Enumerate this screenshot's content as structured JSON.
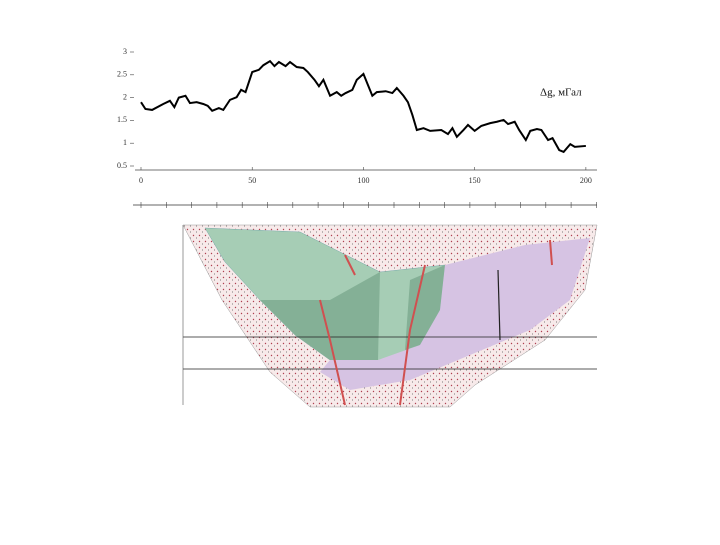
{
  "chart_data": {
    "type": "line",
    "annotation": "Δg, мГал",
    "x": [
      0,
      2,
      5,
      10,
      13,
      15,
      17,
      20,
      22,
      25,
      28,
      30,
      32,
      35,
      37,
      40,
      43,
      45,
      47,
      50,
      53,
      55,
      58,
      60,
      62,
      65,
      67,
      70,
      73,
      75,
      78,
      80,
      82,
      85,
      88,
      90,
      92,
      95,
      97,
      100,
      102,
      104,
      106,
      110,
      113,
      115,
      118,
      120,
      122,
      124,
      127,
      130,
      135,
      138,
      140,
      142,
      145,
      147,
      150,
      153,
      157,
      160,
      163,
      165,
      168,
      170,
      173,
      175,
      178,
      180,
      183,
      185,
      188,
      190,
      193,
      195,
      200
    ],
    "series": [
      {
        "color": "#000000",
        "values": [
          1.9,
          1.75,
          1.73,
          1.86,
          1.93,
          1.79,
          2.0,
          2.04,
          1.88,
          1.9,
          1.86,
          1.82,
          1.71,
          1.77,
          1.73,
          1.95,
          2.01,
          2.17,
          2.12,
          2.56,
          2.61,
          2.71,
          2.8,
          2.69,
          2.78,
          2.69,
          2.78,
          2.67,
          2.65,
          2.56,
          2.39,
          2.25,
          2.39,
          2.04,
          2.12,
          2.04,
          2.1,
          2.17,
          2.39,
          2.52,
          2.28,
          2.04,
          2.12,
          2.14,
          2.1,
          2.21,
          2.04,
          1.9,
          1.62,
          1.29,
          1.33,
          1.27,
          1.29,
          1.2,
          1.33,
          1.14,
          1.29,
          1.4,
          1.27,
          1.38,
          1.44,
          1.47,
          1.51,
          1.42,
          1.47,
          1.29,
          1.07,
          1.27,
          1.31,
          1.29,
          1.07,
          1.11,
          0.85,
          0.81,
          0.98,
          0.92,
          0.94
        ]
      }
    ],
    "xlim": [
      0,
      205
    ],
    "xticks": [
      0,
      50,
      100,
      150,
      200
    ],
    "ylim": [
      0.5,
      3
    ],
    "yticks": [
      0.5,
      1,
      1.5,
      2,
      2.5,
      3
    ]
  }
}
